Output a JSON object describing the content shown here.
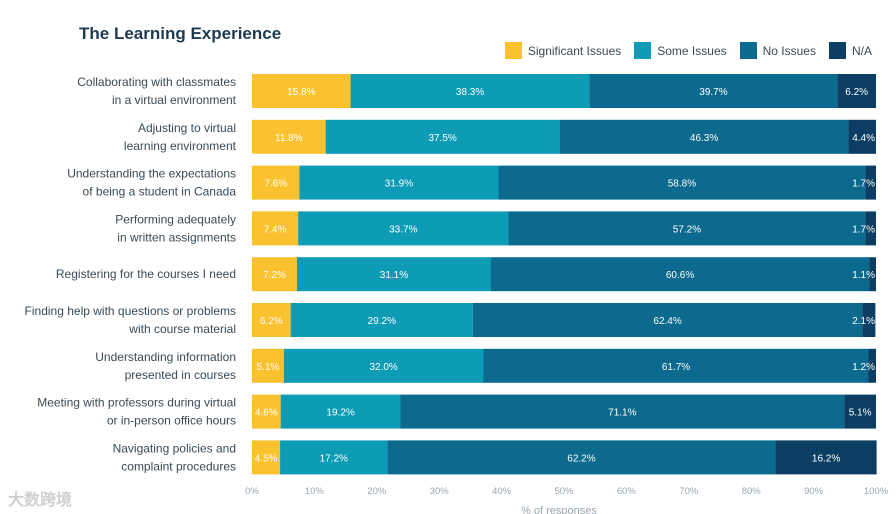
{
  "chart_data": {
    "type": "bar",
    "orientation": "horizontal",
    "stacked": true,
    "title": "The Learning Experience",
    "xlabel": "% of responses",
    "xlim": [
      0,
      100
    ],
    "xticks": [
      "0%",
      "10%",
      "20%",
      "30%",
      "40%",
      "50%",
      "60%",
      "70%",
      "80%",
      "90%",
      "100%"
    ],
    "grid": false,
    "legend_position": "top-right",
    "categories": [
      [
        "Collaborating with classmates",
        "in a virtual environment"
      ],
      [
        "Adjusting to virtual",
        "learning environment"
      ],
      [
        "Understanding the expectations",
        "of being a student in Canada"
      ],
      [
        "Performing adequately",
        "in written assignments"
      ],
      [
        "Registering for the courses I need"
      ],
      [
        "Finding help with questions or problems",
        "with course material"
      ],
      [
        "Understanding information",
        "presented in courses"
      ],
      [
        "Meeting with professors during virtual",
        "or in-person office hours"
      ],
      [
        "Navigating policies and",
        "complaint procedures"
      ]
    ],
    "series": [
      {
        "name": "Significant Issues",
        "color": "#f9c22e",
        "values": [
          15.8,
          11.8,
          7.6,
          7.4,
          7.2,
          6.2,
          5.1,
          4.6,
          4.5
        ]
      },
      {
        "name": "Some Issues",
        "color": "#0d9bb5",
        "values": [
          38.3,
          37.5,
          31.9,
          33.7,
          31.1,
          29.2,
          32.0,
          19.2,
          17.2
        ]
      },
      {
        "name": "No Issues",
        "color": "#0b6a8e",
        "values": [
          39.7,
          46.3,
          58.8,
          57.2,
          60.6,
          62.4,
          61.7,
          71.1,
          62.2
        ]
      },
      {
        "name": "N/A",
        "color": "#0b3e62",
        "values": [
          6.2,
          4.4,
          1.7,
          1.7,
          1.1,
          2.1,
          1.2,
          5.1,
          16.2
        ]
      }
    ],
    "data_labels": [
      [
        "15.8%",
        "38.3%",
        "39.7%",
        "6.2%"
      ],
      [
        "11.8%",
        "37.5%",
        "46.3%",
        "4.4%"
      ],
      [
        "7.6%",
        "31.9%",
        "58.8%",
        "1.7%"
      ],
      [
        "7.4%",
        "33.7%",
        "57.2%",
        "1.7%"
      ],
      [
        "7.2%",
        "31.1%",
        "60.6%",
        "1.1%"
      ],
      [
        "6.2%",
        "29.2%",
        "62.4%",
        "2.1%"
      ],
      [
        "5.1%",
        "32.0%",
        "61.7%",
        "1.2%"
      ],
      [
        "4.6%",
        "19.2%",
        "71.1%",
        "5.1%"
      ],
      [
        "4.5%",
        "17.2%",
        "62.2%",
        "16.2%"
      ]
    ]
  },
  "watermark": "大数跨境"
}
